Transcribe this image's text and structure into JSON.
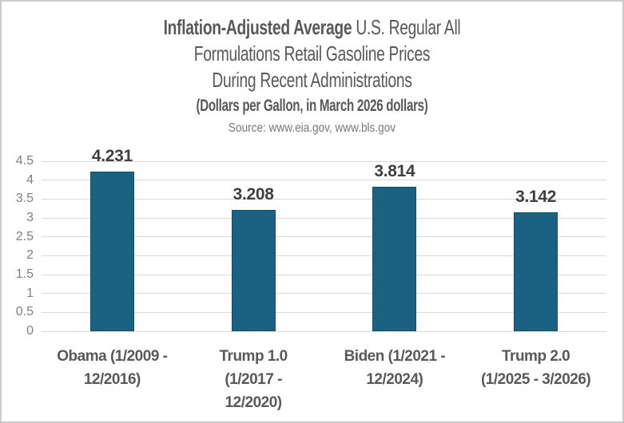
{
  "frame": {
    "background": "#FFFFFF",
    "border_color": "#CBCBCB"
  },
  "title": {
    "line1_bold": "Inflation-Adjusted Average",
    "line1_regular": " U.S. Regular All",
    "line2": "Formulations Retail Gasoline Prices",
    "line3": "During Recent Administrations",
    "subtitle": "(Dollars per Gallon, in March 2026 dollars)",
    "source": "Source: www.eia.gov, www.bls.gov"
  },
  "chart_data": {
    "type": "bar",
    "title": "Inflation-Adjusted Average U.S. Regular All Formulations Retail Gasoline Prices During Recent Administrations",
    "subtitle": "(Dollars per Gallon, in March 2026 dollars)",
    "source": "Source: www.eia.gov, www.bls.gov",
    "categories": [
      "Obama (1/2009 - 12/2016)",
      "Trump 1.0 (1/2017 - 12/2020)",
      "Biden (1/2021 - 12/2024)",
      "Trump 2.0 (1/2025 - 3/2026)"
    ],
    "category_lines": [
      [
        "Obama (1/2009 -",
        "12/2016)"
      ],
      [
        "Trump 1.0",
        "(1/2017 -",
        "12/2020)"
      ],
      [
        "Biden (1/2021 -",
        "12/2024)"
      ],
      [
        "Trump 2.0",
        "(1/2025 - 3/2026)"
      ]
    ],
    "values": [
      4.231,
      3.208,
      3.814,
      3.142
    ],
    "value_labels": [
      "4.231",
      "3.208",
      "3.814",
      "3.142"
    ],
    "ylabel": "",
    "xlabel": "",
    "ylim": [
      0,
      4.5
    ],
    "ytick_step": 0.5,
    "yticks_top_to_bottom": [
      "4.5",
      "4",
      "3.5",
      "3",
      "2.5",
      "2",
      "1.5",
      "1",
      "0.5",
      "0"
    ],
    "grid": true,
    "legend_position": "none",
    "colors": {
      "bar": "#1A6182",
      "bar_border": "#14506B",
      "gridline": "#D9D9D9",
      "ytick_text": "#808080",
      "xlabel_text": "#595959",
      "value_label_text": "#3F3F3F",
      "title_text": "#595959",
      "source_text": "#777777"
    }
  }
}
